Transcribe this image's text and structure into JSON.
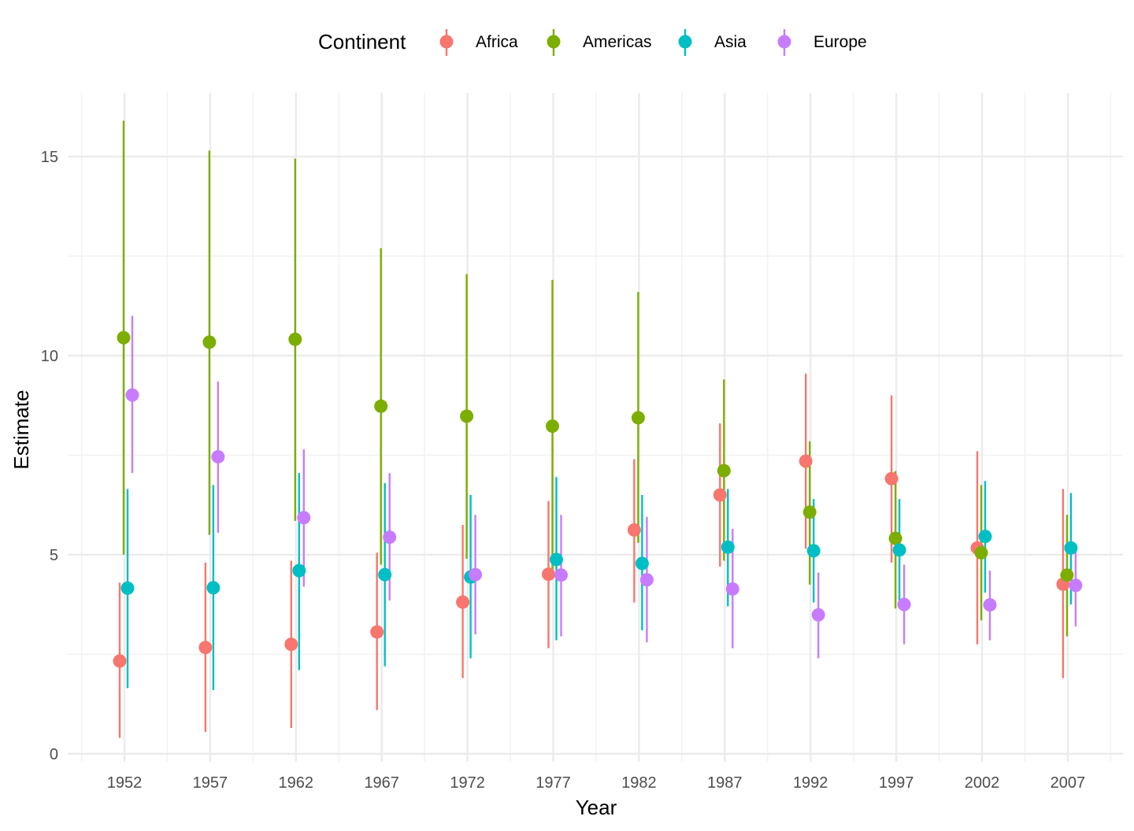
{
  "chart_data": {
    "type": "scatter",
    "title": "",
    "xlabel": "Year",
    "ylabel": "Estimate",
    "ylim": [
      -0.2,
      16.6
    ],
    "y_ticks": [
      0,
      5,
      10,
      15
    ],
    "grid": true,
    "legend": {
      "title": "Continent",
      "position": "top"
    },
    "categories": [
      "1952",
      "1957",
      "1962",
      "1967",
      "1972",
      "1977",
      "1982",
      "1987",
      "1992",
      "1997",
      "2002",
      "2007"
    ],
    "series": [
      {
        "name": "Africa",
        "color": "#F8766D",
        "values": [
          2.33,
          2.67,
          2.75,
          3.06,
          3.81,
          4.51,
          5.62,
          6.5,
          7.35,
          6.91,
          5.17,
          4.26
        ],
        "lower": [
          0.4,
          0.55,
          0.65,
          1.1,
          1.9,
          2.65,
          3.8,
          4.7,
          5.15,
          4.8,
          2.75,
          1.9
        ],
        "upper": [
          4.3,
          4.8,
          4.85,
          5.05,
          5.75,
          6.35,
          7.4,
          8.3,
          9.55,
          9.0,
          7.6,
          6.65
        ]
      },
      {
        "name": "Americas",
        "color": "#7CAE00",
        "values": [
          10.45,
          10.34,
          10.41,
          8.73,
          8.48,
          8.23,
          8.44,
          7.11,
          6.07,
          5.41,
          5.05,
          4.49
        ],
        "lower": [
          5.0,
          5.5,
          5.85,
          4.75,
          4.9,
          4.55,
          5.3,
          4.85,
          4.25,
          3.65,
          3.35,
          2.95
        ],
        "upper": [
          15.9,
          15.15,
          14.95,
          12.7,
          12.05,
          11.9,
          11.6,
          9.4,
          7.85,
          7.1,
          6.75,
          6.0
        ]
      },
      {
        "name": "Asia",
        "color": "#00BFC4",
        "values": [
          4.16,
          4.17,
          4.6,
          4.5,
          4.44,
          4.88,
          4.78,
          5.19,
          5.1,
          5.12,
          5.46,
          5.17
        ],
        "lower": [
          1.65,
          1.6,
          2.1,
          2.2,
          2.4,
          2.85,
          3.1,
          3.7,
          3.8,
          3.85,
          4.05,
          3.75
        ],
        "upper": [
          6.65,
          6.75,
          7.05,
          6.8,
          6.5,
          6.95,
          6.5,
          6.65,
          6.4,
          6.4,
          6.85,
          6.55
        ]
      },
      {
        "name": "Europe",
        "color": "#C77CFF",
        "values": [
          9.01,
          7.46,
          5.93,
          5.44,
          4.5,
          4.49,
          4.37,
          4.14,
          3.49,
          3.75,
          3.74,
          4.23
        ],
        "lower": [
          7.05,
          5.55,
          4.2,
          3.85,
          3.0,
          2.95,
          2.8,
          2.65,
          2.4,
          2.75,
          2.85,
          3.2
        ],
        "upper": [
          11.0,
          9.35,
          7.65,
          7.05,
          6.0,
          6.0,
          5.95,
          5.65,
          4.55,
          4.75,
          4.6,
          5.25
        ]
      }
    ]
  }
}
